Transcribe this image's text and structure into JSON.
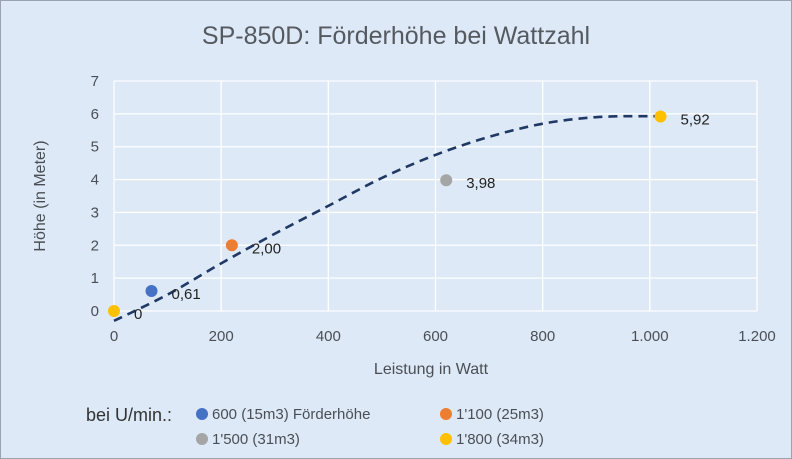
{
  "chart_data": {
    "type": "scatter",
    "title": "SP-850D: Förderhöhe bei Wattzahl",
    "xlabel": "Leistung in Watt",
    "ylabel": "Höhe (in Meter)",
    "xlim": [
      0,
      1200
    ],
    "ylim": [
      0,
      7
    ],
    "xticks": [
      0,
      200,
      400,
      600,
      800,
      1000,
      1200
    ],
    "xtick_labels": [
      "0",
      "200",
      "400",
      "600",
      "800",
      "1.000",
      "1.200"
    ],
    "yticks": [
      0,
      1,
      2,
      3,
      4,
      5,
      6,
      7
    ],
    "ytick_labels": [
      "0",
      "1",
      "2",
      "3",
      "4",
      "5",
      "6",
      "7"
    ],
    "grid": true,
    "series": [
      {
        "name": "600 (15m3) Förderhöhe",
        "color": "#4472c4",
        "x": 70,
        "y": 0.61,
        "label": "0,61"
      },
      {
        "name": "1'100 (25m3)",
        "color": "#ed7d31",
        "x": 220,
        "y": 2.0,
        "label": "2,00"
      },
      {
        "name": "1'500 (31m3)",
        "color": "#a5a5a5",
        "x": 620,
        "y": 3.98,
        "label": "3,98"
      },
      {
        "name": "1'800 (34m3)",
        "color": "#ffc000",
        "x": 1020,
        "y": 5.92,
        "label": "5,92"
      },
      {
        "name": "",
        "color": "#ffc000",
        "x": 0,
        "y": 0,
        "label": "0"
      }
    ],
    "trendline": {
      "style": "dashed",
      "color": "#1f3864",
      "points": [
        [
          0,
          -0.3
        ],
        [
          100,
          0.5
        ],
        [
          200,
          1.45
        ],
        [
          300,
          2.35
        ],
        [
          400,
          3.2
        ],
        [
          500,
          4.05
        ],
        [
          600,
          4.75
        ],
        [
          700,
          5.3
        ],
        [
          800,
          5.7
        ],
        [
          900,
          5.9
        ],
        [
          1000,
          5.93
        ],
        [
          1030,
          5.92
        ]
      ]
    },
    "legend": {
      "prefix": "bei U/min.:",
      "position": "bottom",
      "entries": [
        {
          "label": "600 (15m3) Förderhöhe",
          "color": "#4472c4"
        },
        {
          "label": "1'100 (25m3)",
          "color": "#ed7d31"
        },
        {
          "label": "1'500 (31m3)",
          "color": "#a5a5a5"
        },
        {
          "label": "1'800 (34m3)",
          "color": "#ffc000"
        }
      ]
    }
  }
}
